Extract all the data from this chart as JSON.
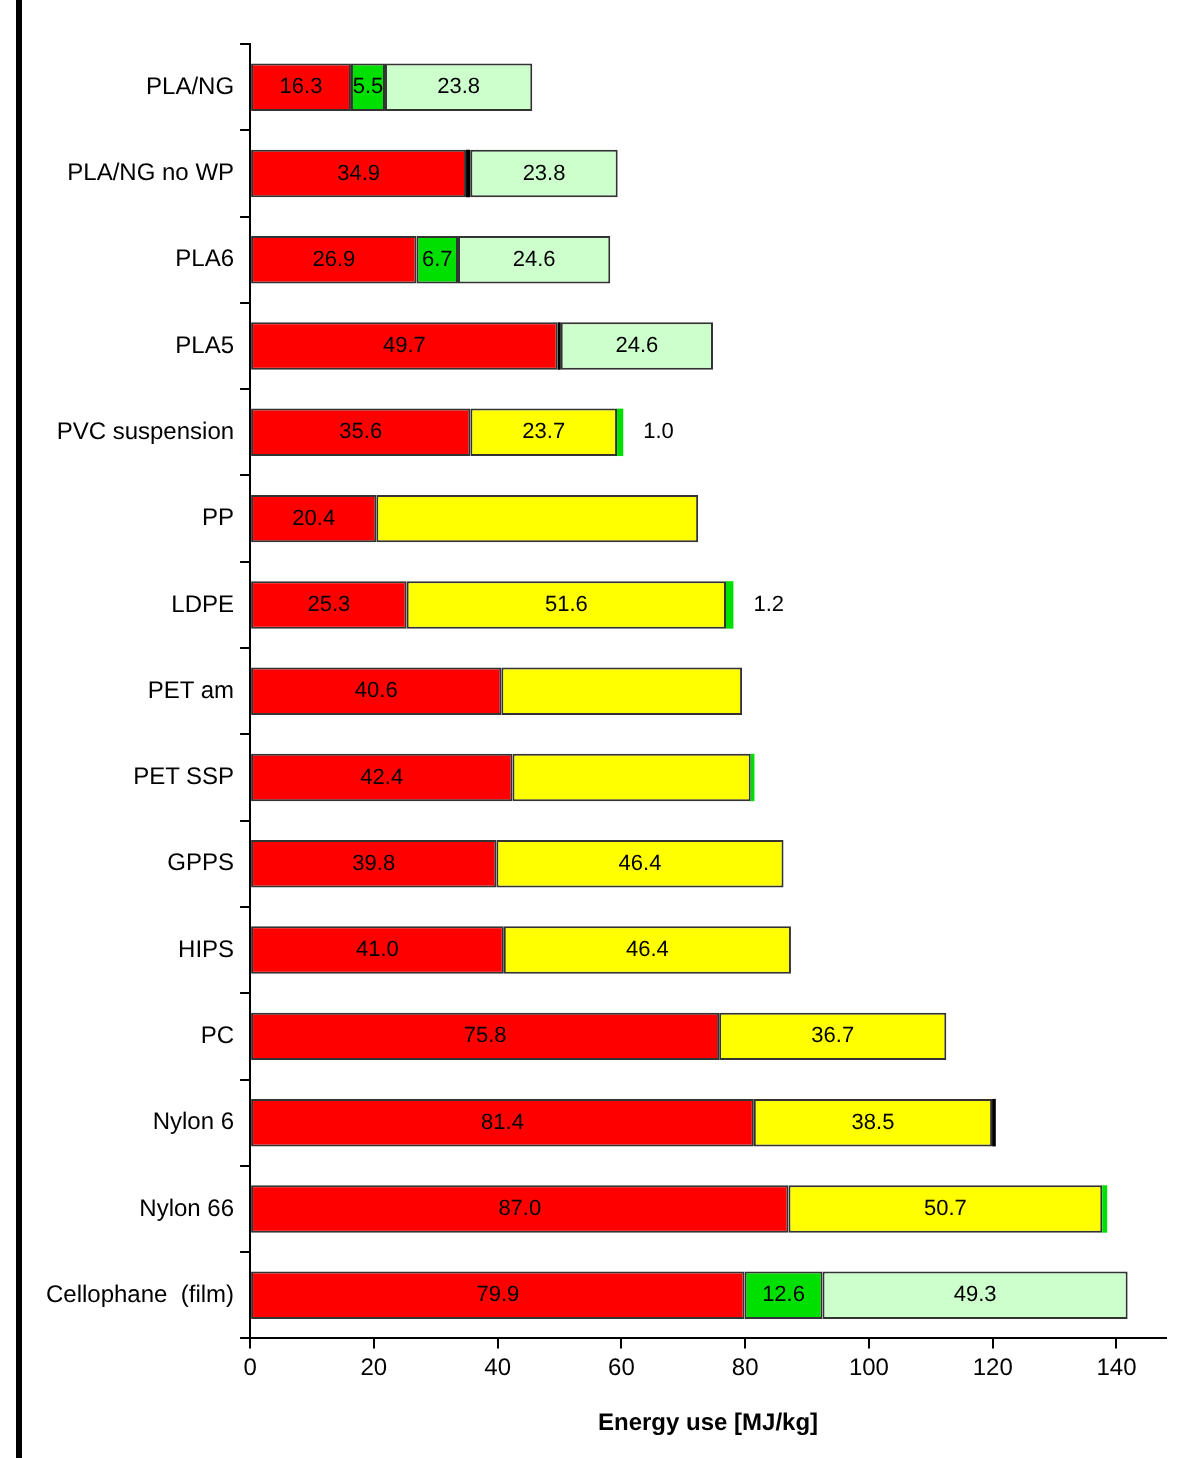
{
  "chart_data": {
    "type": "bar",
    "orientation": "horizontal",
    "stacked": true,
    "xlabel": "Energy use [MJ/kg]",
    "categories": [
      "PLA/NG",
      "PLA/NG no WP",
      "PLA6",
      "PLA5",
      "PVC suspension",
      "PP",
      "LDPE",
      "PET am",
      "PET SSP",
      "GPPS",
      "HIPS",
      "PC",
      "Nylon 6",
      "Nylon 66",
      "Cellophane  (film)"
    ],
    "series": [
      {
        "color": "#ff0000",
        "values": [
          16.3,
          34.9,
          26.9,
          49.7,
          35.6,
          20.4,
          25.3,
          40.6,
          42.4,
          39.8,
          41.0,
          75.8,
          81.4,
          87.0,
          79.9
        ],
        "value_labels": [
          "16.3",
          "34.9",
          "26.9",
          "49.7",
          "35.6",
          "20.4",
          "25.3",
          "40.6",
          "42.4",
          "39.8",
          "41.0",
          "75.8",
          "81.4",
          "87.0",
          "79.9"
        ]
      },
      {
        "color": "#000000",
        "values": [
          null,
          0.7,
          null,
          0.5,
          null,
          null,
          null,
          null,
          null,
          null,
          null,
          null,
          null,
          null,
          null
        ]
      },
      {
        "color": "#00e000",
        "values": [
          5.5,
          null,
          6.7,
          null,
          null,
          null,
          null,
          null,
          null,
          null,
          null,
          null,
          null,
          null,
          12.6
        ],
        "value_labels": [
          "5.5",
          null,
          "6.7",
          null,
          null,
          null,
          null,
          null,
          null,
          null,
          null,
          null,
          null,
          null,
          "12.6"
        ]
      },
      {
        "color": "#ccffcc",
        "values": [
          23.8,
          23.8,
          24.6,
          24.6,
          null,
          null,
          null,
          null,
          null,
          null,
          null,
          null,
          null,
          null,
          49.3
        ],
        "value_labels": [
          "23.8",
          "23.8",
          "24.6",
          "24.6",
          null,
          null,
          null,
          null,
          null,
          null,
          null,
          null,
          null,
          null,
          "49.3"
        ]
      },
      {
        "color": "#ffff00",
        "values": [
          null,
          null,
          null,
          null,
          23.7,
          52.0,
          51.6,
          38.9,
          38.5,
          46.4,
          46.4,
          36.7,
          38.5,
          50.7,
          null
        ],
        "value_labels": [
          null,
          null,
          null,
          null,
          "23.7",
          null,
          "51.6",
          null,
          null,
          "46.4",
          "46.4",
          "36.7",
          "38.5",
          "50.7",
          null
        ]
      },
      {
        "color": "#00e000",
        "values": [
          null,
          null,
          null,
          null,
          1.0,
          null,
          1.2,
          null,
          0.6,
          null,
          null,
          null,
          null,
          0.8,
          null
        ],
        "value_labels": [
          null,
          null,
          null,
          null,
          "1.0",
          null,
          "1.2",
          null,
          null,
          null,
          null,
          null,
          null,
          null,
          null
        ]
      },
      {
        "color": "#000000",
        "values": [
          null,
          null,
          null,
          null,
          null,
          null,
          null,
          null,
          null,
          null,
          null,
          null,
          0.6,
          null,
          null
        ]
      }
    ],
    "xlim": [
      0,
      148
    ],
    "xticks": [
      0,
      20,
      40,
      60,
      80,
      100,
      120,
      140
    ],
    "legend": false
  }
}
